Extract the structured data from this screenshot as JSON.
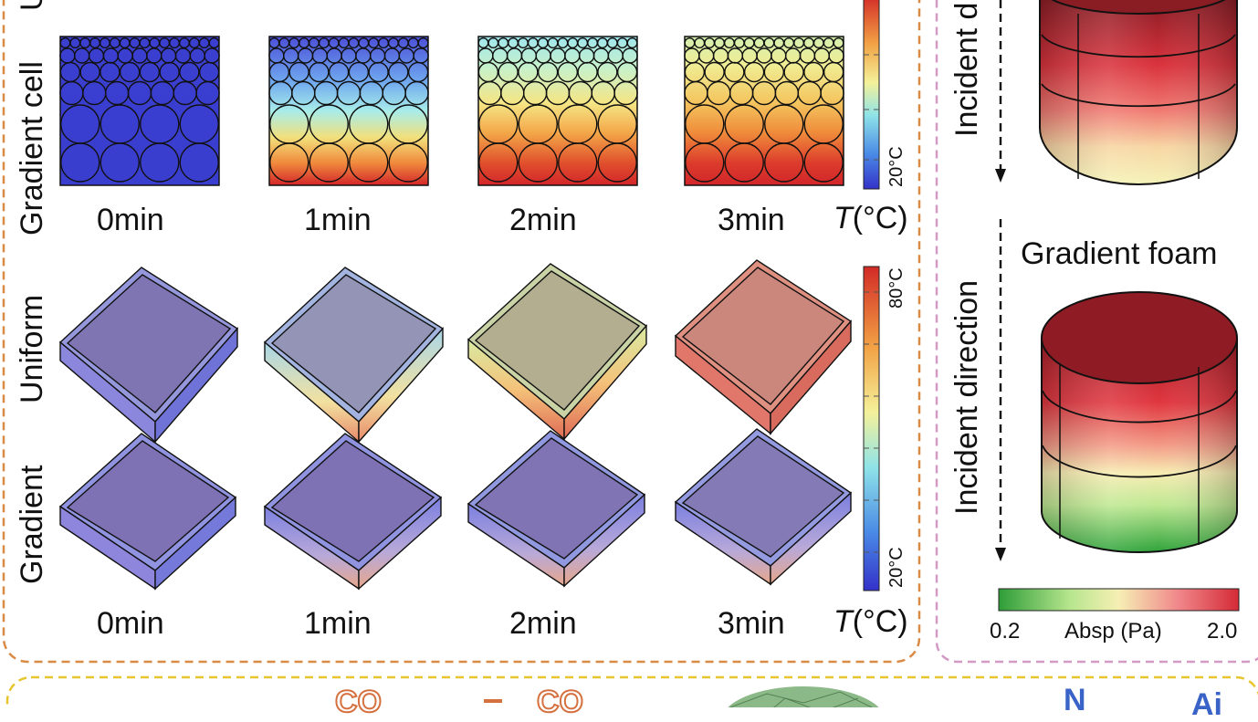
{
  "left_panel": {
    "row_labels": {
      "uniform_cut": "U",
      "gradient_cell": "Gradient cell",
      "uniform": "Uniform",
      "gradient": "Gradient"
    },
    "time_labels_top": [
      "0min",
      "1min",
      "2min",
      "3min"
    ],
    "time_labels_bottom": [
      "0min",
      "1min",
      "2min",
      "3min"
    ],
    "temp_axis_top": {
      "symbol": "T",
      "unit": "(°C)",
      "min_tick": "20°C"
    },
    "temp_axis_bottom": {
      "symbol": "T",
      "unit": "(°C)",
      "min_tick": "20°C",
      "max_tick": "80°C"
    },
    "colors": {
      "frame": "#d98a45",
      "cold": "#3a3fd0",
      "hot": "#d42a2a"
    }
  },
  "right_panel": {
    "incident_label_top": "Incident d",
    "incident_label": "Incident direction",
    "gradient_title": "Gradient foam",
    "absorption_bar": {
      "min": "0.2",
      "label": "Absp (Pa)",
      "max": "2.0"
    },
    "colors": {
      "frame": "#d39bc4"
    }
  },
  "bottom_panel": {
    "labels": [
      "CO",
      "CO",
      "N",
      "Ai"
    ],
    "colors": {
      "frame": "#e6c52e"
    }
  }
}
